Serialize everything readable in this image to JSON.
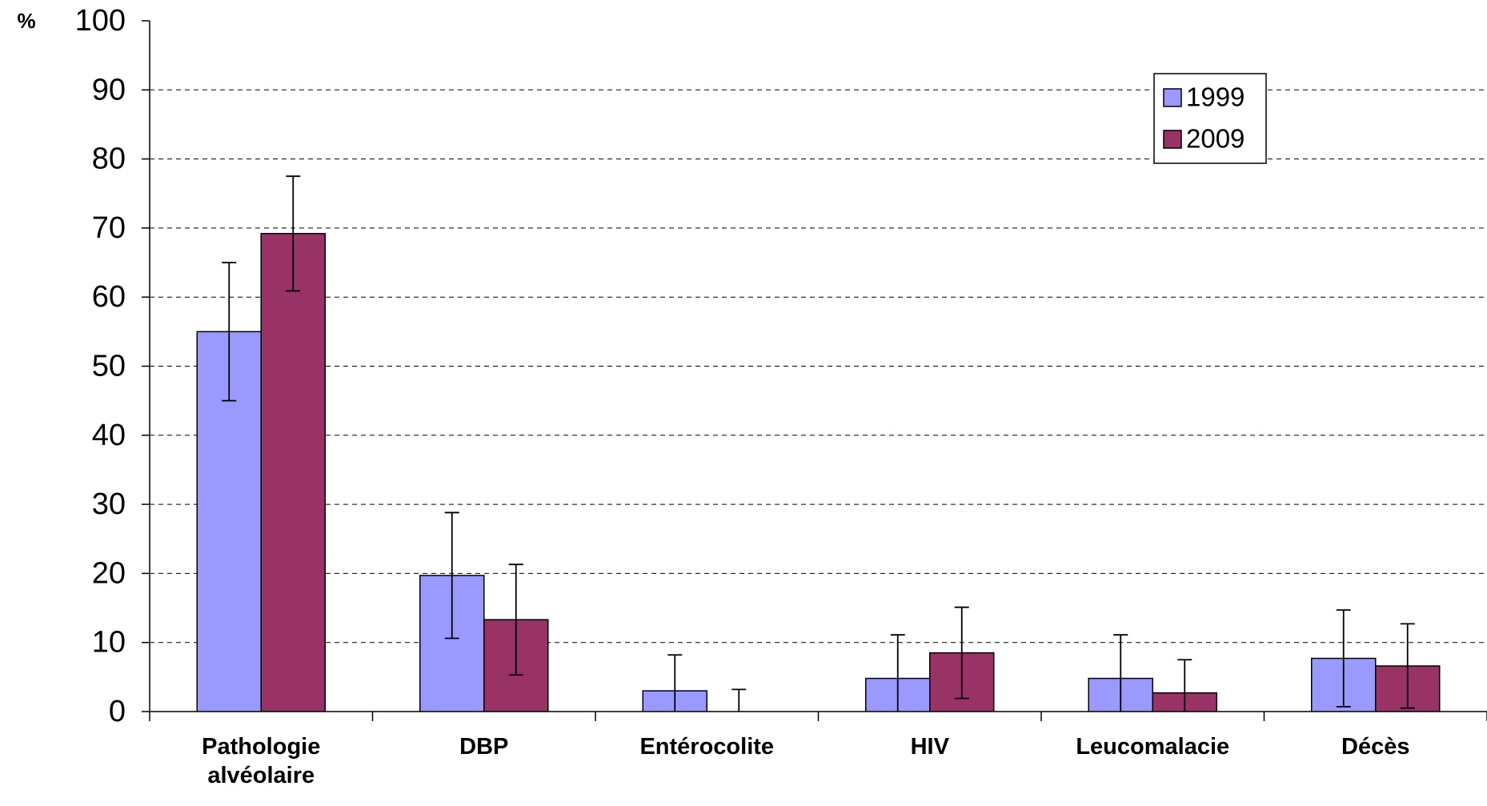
{
  "chart_data": {
    "type": "bar",
    "y_label": "%",
    "categories": [
      "Pathologie alvéolaire",
      "DBP",
      "Entérocolite",
      "HIV",
      "Leucomalacie",
      "Décès"
    ],
    "series": [
      {
        "name": "1999",
        "color": "#9999ff",
        "values": [
          55,
          19.7,
          3,
          4.8,
          4.8,
          7.7
        ],
        "errors": [
          10,
          9.1,
          5.2,
          6.3,
          6.3,
          7
        ]
      },
      {
        "name": "2009",
        "color": "#993366",
        "values": [
          69.2,
          13.3,
          0,
          8.5,
          2.7,
          6.6
        ],
        "errors": [
          8.3,
          8,
          3.2,
          6.6,
          4.8,
          6.1
        ]
      }
    ],
    "ylim": [
      0,
      100
    ],
    "yticks": [
      0,
      10,
      20,
      30,
      40,
      50,
      60,
      70,
      80,
      90,
      100
    ],
    "grid": true,
    "legend": "upper right"
  }
}
